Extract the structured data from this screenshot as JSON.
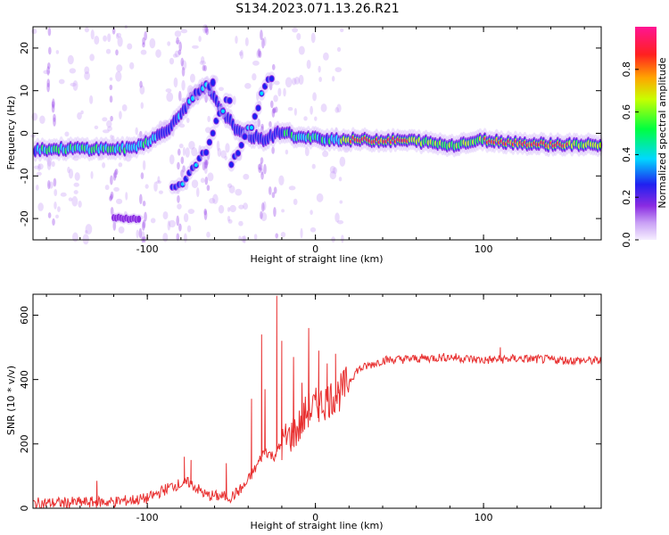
{
  "figure_title": "S134.2023.071.13.26.R21",
  "colors": {
    "snr_line": "#e83030",
    "axis": "#000000",
    "background": "#ffffff"
  },
  "chart_data": [
    {
      "type": "heatmap",
      "xlabel": "Height of straight line (km)",
      "ylabel": "Frequency (Hz)",
      "xlim": [
        -168,
        170
      ],
      "ylim": [
        -25,
        25
      ],
      "xticks": [
        "-100",
        "0",
        "100"
      ],
      "yticks": [
        "-20",
        "-10",
        "0",
        "10",
        "20"
      ],
      "colorbar": {
        "label": "Normalized spectral amplitude",
        "range": [
          0,
          1
        ],
        "ticks": [
          "0.0",
          "0.2",
          "0.4",
          "0.6",
          "0.8"
        ],
        "colormap": [
          "#f0e4fc",
          "#8a2be2",
          "#2020f0",
          "#00d8ff",
          "#00ff40",
          "#c8ff00",
          "#ffa500",
          "#ff2020",
          "#ff1493"
        ]
      },
      "ridge": {
        "main_band": [
          [
            -168,
            -3.8
          ],
          [
            -140,
            -3.6
          ],
          [
            -110,
            -3.6
          ],
          [
            -95,
            -1
          ],
          [
            -85,
            2
          ],
          [
            -75,
            7.5
          ],
          [
            -65,
            11
          ],
          [
            -55,
            5
          ],
          [
            -45,
            0
          ],
          [
            -30,
            -1.5
          ],
          [
            -20,
            0.5
          ],
          [
            -10,
            -1
          ],
          [
            0,
            -1.2
          ],
          [
            20,
            -1.5
          ],
          [
            60,
            -1.8
          ],
          [
            80,
            -2.8
          ],
          [
            100,
            -1.6
          ],
          [
            130,
            -2.5
          ],
          [
            170,
            -2.8
          ]
        ],
        "upper_branch": [
          [
            -75,
            7.5
          ],
          [
            -68,
            10.5
          ],
          [
            -60,
            12
          ]
        ],
        "left_branch": [
          [
            -85,
            -13
          ],
          [
            -75,
            -10
          ],
          [
            -65,
            -4
          ],
          [
            -58,
            4
          ],
          [
            -50,
            9
          ]
        ],
        "right_branch": [
          [
            -50,
            -8
          ],
          [
            -45,
            -3
          ],
          [
            -38,
            2
          ],
          [
            -30,
            11
          ],
          [
            -25,
            14
          ]
        ],
        "island": [
          [
            -120,
            -19.8
          ],
          [
            -105,
            -20.2
          ]
        ]
      }
    },
    {
      "type": "line",
      "xlabel": "Height of straight line (km)",
      "ylabel": "SNR (10 * v/v)",
      "xlim": [
        -168,
        170
      ],
      "ylim": [
        0,
        665
      ],
      "xticks": [
        "-100",
        "0",
        "100"
      ],
      "yticks": [
        "0",
        "200",
        "400",
        "600"
      ],
      "series": [
        {
          "values_envelope": [
            [
              -168,
              15
            ],
            [
              -140,
              18
            ],
            [
              -120,
              20
            ],
            [
              -100,
              30
            ],
            [
              -85,
              70
            ],
            [
              -75,
              80
            ],
            [
              -65,
              40
            ],
            [
              -50,
              35
            ],
            [
              -42,
              70
            ],
            [
              -35,
              130
            ],
            [
              -30,
              180
            ],
            [
              -25,
              160
            ],
            [
              -20,
              200
            ],
            [
              -10,
              250
            ],
            [
              -5,
              300
            ],
            [
              5,
              330
            ],
            [
              15,
              360
            ],
            [
              25,
              430
            ],
            [
              40,
              460
            ],
            [
              60,
              465
            ],
            [
              80,
              470
            ],
            [
              100,
              460
            ],
            [
              120,
              465
            ],
            [
              150,
              460
            ],
            [
              170,
              458
            ]
          ],
          "spikes": [
            [
              -130,
              85
            ],
            [
              -78,
              160
            ],
            [
              -74,
              150
            ],
            [
              -53,
              140
            ],
            [
              -38,
              340
            ],
            [
              -32,
              540
            ],
            [
              -30,
              370
            ],
            [
              -23,
              660
            ],
            [
              -20,
              520
            ],
            [
              -13,
              470
            ],
            [
              -8,
              390
            ],
            [
              -4,
              560
            ],
            [
              2,
              490
            ],
            [
              7,
              450
            ],
            [
              12,
              480
            ],
            [
              14,
              370
            ],
            [
              110,
              500
            ]
          ]
        }
      ]
    }
  ]
}
